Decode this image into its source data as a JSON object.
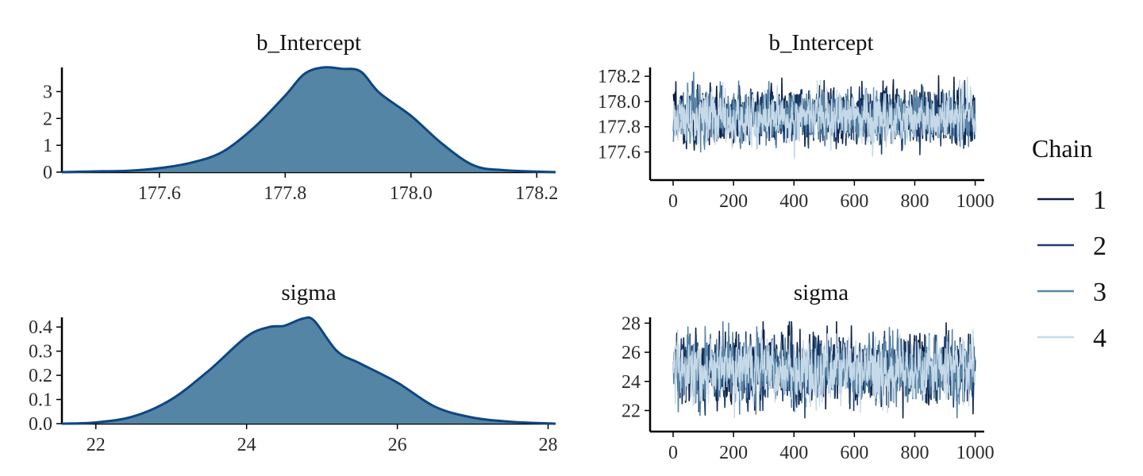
{
  "chart_data": {
    "type": "mcmc-diagnostics",
    "legend": {
      "title": "Chain",
      "position": "right",
      "entries": [
        {
          "label": "1",
          "color": "#0b1f45"
        },
        {
          "label": "2",
          "color": "#1d3f6e"
        },
        {
          "label": "3",
          "color": "#5a85a6"
        },
        {
          "label": "4",
          "color": "#c6d9e8"
        }
      ]
    },
    "panels": [
      {
        "id": "density-b_intercept",
        "type": "area",
        "title": "b_Intercept",
        "fill": "#5585a5",
        "stroke": "#0e4682",
        "xlim": [
          177.445,
          178.23
        ],
        "ylim": [
          0,
          3.9
        ],
        "xticks": [
          177.6,
          177.8,
          178.0,
          178.2
        ],
        "xtick_labels": [
          "177.6",
          "177.8",
          "178.0",
          "178.2"
        ],
        "yticks": [
          0,
          1,
          2,
          3
        ],
        "ytick_labels": [
          "0",
          "1",
          "2",
          "3"
        ],
        "x": [
          177.445,
          177.5,
          177.55,
          177.6,
          177.65,
          177.7,
          177.75,
          177.8,
          177.83,
          177.86,
          177.89,
          177.92,
          177.95,
          178.0,
          178.05,
          178.1,
          178.15,
          178.23
        ],
        "y": [
          0,
          0.03,
          0.05,
          0.15,
          0.35,
          0.75,
          1.65,
          2.85,
          3.65,
          3.9,
          3.85,
          3.75,
          2.95,
          2.1,
          1.05,
          0.25,
          0.07,
          0
        ]
      },
      {
        "id": "trace-b_intercept",
        "type": "line",
        "title": "b_Intercept",
        "xlim": [
          -50,
          1030
        ],
        "ylim": [
          177.44,
          178.27
        ],
        "xticks": [
          0,
          200,
          400,
          600,
          800,
          1000
        ],
        "xtick_labels": [
          "0",
          "200",
          "400",
          "600",
          "800",
          "1000"
        ],
        "yticks": [
          177.6,
          177.8,
          178.0,
          178.2
        ],
        "ytick_labels": [
          "177.6",
          "177.8",
          "178.0",
          "178.2"
        ],
        "n_iter": 1000,
        "center": 177.88,
        "spread": 0.1,
        "range": [
          177.46,
          178.25
        ],
        "chains": [
          "1",
          "2",
          "3",
          "4"
        ]
      },
      {
        "id": "density-sigma",
        "type": "area",
        "title": "sigma",
        "fill": "#5585a5",
        "stroke": "#0e4682",
        "xlim": [
          21.55,
          28.1
        ],
        "ylim": [
          0,
          0.44
        ],
        "xticks": [
          22,
          24,
          26,
          28
        ],
        "xtick_labels": [
          "22",
          "24",
          "26",
          "28"
        ],
        "yticks": [
          0.0,
          0.1,
          0.2,
          0.3,
          0.4
        ],
        "ytick_labels": [
          "0.0",
          "0.1",
          "0.2",
          "0.3",
          "0.4"
        ],
        "x": [
          21.55,
          22,
          22.5,
          23,
          23.5,
          24,
          24.3,
          24.5,
          24.75,
          24.9,
          25.2,
          25.5,
          26,
          26.5,
          27,
          27.5,
          28.1
        ],
        "y": [
          0,
          0.005,
          0.03,
          0.1,
          0.22,
          0.36,
          0.4,
          0.405,
          0.435,
          0.425,
          0.3,
          0.25,
          0.17,
          0.07,
          0.025,
          0.008,
          0
        ]
      },
      {
        "id": "trace-sigma",
        "type": "line",
        "title": "sigma",
        "xlim": [
          -50,
          1030
        ],
        "ylim": [
          21.1,
          28.4
        ],
        "xticks": [
          0,
          200,
          400,
          600,
          800,
          1000
        ],
        "xtick_labels": [
          "0",
          "200",
          "400",
          "600",
          "800",
          "1000"
        ],
        "yticks": [
          22,
          24,
          26,
          28
        ],
        "ytick_labels": [
          "22",
          "24",
          "26",
          "28"
        ],
        "n_iter": 1000,
        "center": 24.8,
        "spread": 1.05,
        "range": [
          21.5,
          28.1
        ],
        "chains": [
          "1",
          "2",
          "3",
          "4"
        ]
      }
    ]
  }
}
